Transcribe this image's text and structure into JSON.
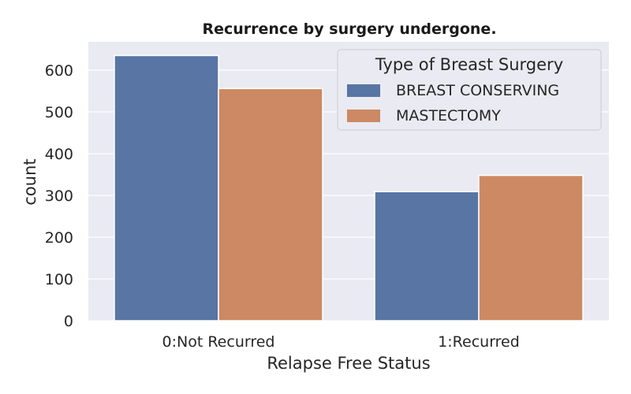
{
  "chart_data": {
    "type": "bar",
    "title": "Recurrence by surgery undergone.",
    "xlabel": "Relapse Free Status",
    "ylabel": "count",
    "categories": [
      "0:Not Recurred",
      "1:Recurred"
    ],
    "series": [
      {
        "name": "BREAST CONSERVING",
        "values": [
          635,
          309
        ]
      },
      {
        "name": "MASTECTOMY",
        "values": [
          556,
          348
        ]
      }
    ],
    "ylim": [
      0,
      668
    ],
    "yticks": [
      0,
      100,
      200,
      300,
      400,
      500,
      600
    ],
    "grid": true,
    "legend": {
      "title": "Type of Breast Surgery",
      "position": "top-right"
    },
    "colors": {
      "BREAST CONSERVING": "#5875a4",
      "MASTECTOMY": "#cc8963",
      "background": "#eaeaf2",
      "grid": "#ffffff"
    }
  }
}
